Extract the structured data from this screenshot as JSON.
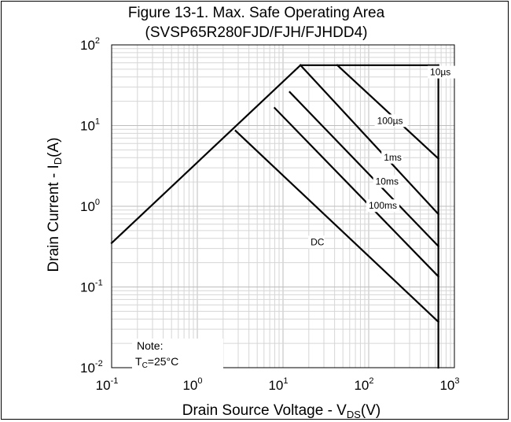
{
  "chart_data": {
    "type": "line",
    "title": "Figure 13-1. Max. Safe Operating Area",
    "subtitle": "(SVSP65R280FJD/FJH/FJHDD4)",
    "xlabel": {
      "main": "Drain Source Voltage - V",
      "sub": "DS",
      "unit": "(V)"
    },
    "ylabel": {
      "main": "Drain Current - I",
      "sub": "D",
      "unit": "(A)"
    },
    "x_scale": "log",
    "y_scale": "log",
    "xlim": [
      0.1,
      1000
    ],
    "ylim": [
      0.01,
      100
    ],
    "grid": true,
    "x_ticks": [
      {
        "base": "10",
        "exp": "-1",
        "value": 0.1
      },
      {
        "base": "10",
        "exp": "0",
        "value": 1
      },
      {
        "base": "10",
        "exp": "1",
        "value": 10
      },
      {
        "base": "10",
        "exp": "2",
        "value": 100
      },
      {
        "base": "10",
        "exp": "3",
        "value": 1000
      }
    ],
    "y_ticks": [
      {
        "base": "10",
        "exp": "-2",
        "value": 0.01
      },
      {
        "base": "10",
        "exp": "-1",
        "value": 0.1
      },
      {
        "base": "10",
        "exp": "0",
        "value": 1
      },
      {
        "base": "10",
        "exp": "1",
        "value": 10
      },
      {
        "base": "10",
        "exp": "2",
        "value": 100
      }
    ],
    "rds_limit": [
      [
        0.1,
        0.35
      ],
      [
        16,
        56
      ]
    ],
    "current_limit": [
      [
        16,
        56
      ],
      [
        650,
        56
      ]
    ],
    "voltage_limit": [
      [
        650,
        56
      ],
      [
        650,
        0.01
      ]
    ],
    "series": [
      {
        "name": "10µs",
        "points": [
          [
            16,
            56
          ],
          [
            650,
            56
          ]
        ],
        "label_at": [
          520,
          42
        ]
      },
      {
        "name": "100µs",
        "points": [
          [
            43,
            56
          ],
          [
            650,
            3.9
          ]
        ],
        "label_at": [
          125,
          10.5
        ]
      },
      {
        "name": "1ms",
        "points": [
          [
            16,
            56
          ],
          [
            650,
            0.8
          ]
        ],
        "label_at": [
          150,
          3.7
        ]
      },
      {
        "name": "10ms",
        "points": [
          [
            12,
            26
          ],
          [
            650,
            0.32
          ]
        ],
        "label_at": [
          120,
          1.85
        ]
      },
      {
        "name": "100ms",
        "points": [
          [
            8,
            16.5
          ],
          [
            650,
            0.135
          ]
        ],
        "label_at": [
          100,
          0.93
        ]
      },
      {
        "name": "DC",
        "points": [
          [
            2.8,
            8.6
          ],
          [
            650,
            0.037
          ]
        ],
        "label_at": [
          21,
          0.33
        ]
      }
    ],
    "annotations": {
      "note_line1": "Note:",
      "note_line2_main": "T",
      "note_line2_sub": "C",
      "note_line2_rest": "=25°C"
    }
  }
}
